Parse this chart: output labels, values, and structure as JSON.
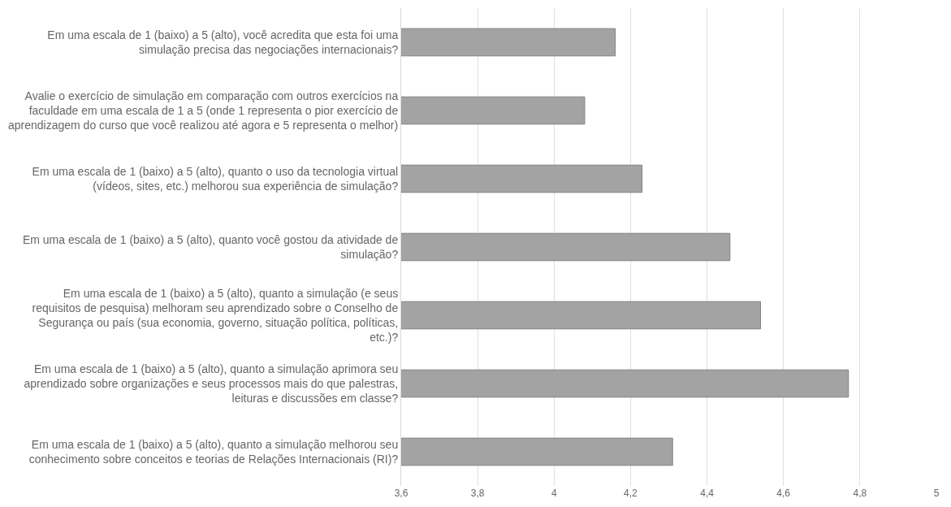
{
  "chart_data": {
    "type": "bar",
    "orientation": "horizontal",
    "categories": [
      "Em uma escala de 1 (baixo) a 5 (alto), você acredita que esta foi uma simulação precisa das negociações internacionais?",
      "Avalie o exercício de simulação em comparação com outros exercícios na faculdade em uma escala de 1 a 5 (onde 1 representa o pior exercício de aprendizagem do curso que você realizou até agora e 5 representa o melhor)",
      "Em uma escala de 1 (baixo) a 5 (alto), quanto o uso da tecnologia virtual (vídeos, sites, etc.) melhorou sua experiência de simulação?",
      "Em uma escala de 1 (baixo) a 5 (alto), quanto você gostou da atividade de simulação?",
      "Em uma escala de 1 (baixo) a 5 (alto), quanto a simulação (e seus requisitos de pesquisa) melhoram seu aprendizado sobre o Conselho de Segurança ou país (sua economia, governo, situação política, políticas, etc.)?",
      "Em uma escala de 1 (baixo) a 5 (alto), quanto a simulação aprimora seu aprendizado sobre organizações e seus processos mais do que palestras, leituras e discussões em classe?",
      "Em uma escala de 1 (baixo) a 5 (alto), quanto a simulação melhorou seu conhecimento sobre conceitos e teorias de Relações Internacionais (RI)?"
    ],
    "values": [
      4.16,
      4.08,
      4.23,
      4.46,
      4.54,
      4.77,
      4.31
    ],
    "color": "#a3a3a3",
    "xlim": [
      3.6,
      5
    ],
    "xticks": [
      {
        "value": 3.6,
        "label": "3,6"
      },
      {
        "value": 3.8,
        "label": "3,8"
      },
      {
        "value": 4,
        "label": "4"
      },
      {
        "value": 4.2,
        "label": "4,2"
      },
      {
        "value": 4.4,
        "label": "4,4"
      },
      {
        "value": 4.6,
        "label": "4,6"
      },
      {
        "value": 4.8,
        "label": "4,8"
      },
      {
        "value": 5,
        "label": "5"
      }
    ],
    "grid": "x",
    "legend": false
  }
}
